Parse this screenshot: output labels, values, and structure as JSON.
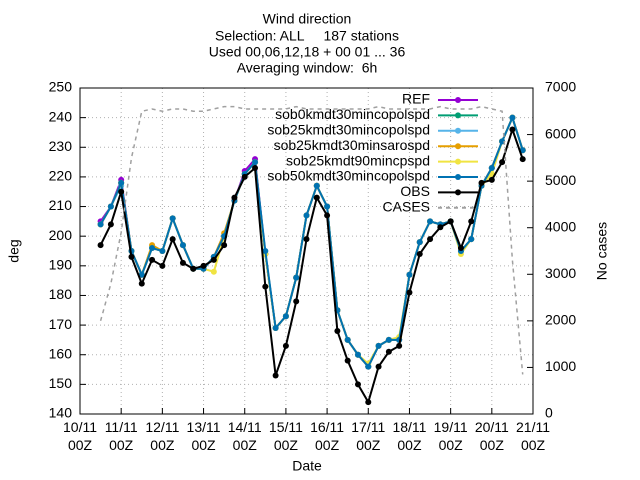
{
  "chart_data": {
    "type": "line",
    "title": [
      "Wind direction",
      "Selection: ALL     187 stations",
      "Used 00,06,12,18 + 00 01 ... 36",
      "Averaging window:  6h"
    ],
    "x_label": "Date",
    "y_label": "deg",
    "y2_label": "No cases",
    "x": [
      "10/11 12Z",
      "10/11 18Z",
      "11/11 00Z",
      "11/11 06Z",
      "11/11 12Z",
      "11/11 18Z",
      "12/11 00Z",
      "12/11 06Z",
      "12/11 12Z",
      "12/11 18Z",
      "13/11 00Z",
      "13/11 06Z",
      "13/11 12Z",
      "13/11 18Z",
      "14/11 00Z",
      "14/11 06Z",
      "14/11 12Z",
      "14/11 18Z",
      "15/11 00Z",
      "15/11 06Z",
      "15/11 12Z",
      "15/11 18Z",
      "16/11 00Z",
      "16/11 06Z",
      "16/11 12Z",
      "16/11 18Z",
      "17/11 00Z",
      "17/11 06Z",
      "17/11 12Z",
      "17/11 18Z",
      "18/11 00Z",
      "18/11 06Z",
      "18/11 12Z",
      "18/11 18Z",
      "19/11 00Z",
      "19/11 06Z",
      "19/11 12Z",
      "19/11 18Z",
      "20/11 00Z",
      "20/11 06Z",
      "20/11 12Z",
      "20/11 18Z"
    ],
    "xlim": [
      "10/11 00Z",
      "21/11 00Z"
    ],
    "xticks": [
      "10/11 00Z",
      "11/11 00Z",
      "12/11 00Z",
      "13/11 00Z",
      "14/11 00Z",
      "15/11 00Z",
      "16/11 00Z",
      "17/11 00Z",
      "18/11 00Z",
      "19/11 00Z",
      "20/11 00Z",
      "21/11 00Z"
    ],
    "ylim": [
      140,
      250
    ],
    "yticks": [
      140,
      150,
      160,
      170,
      180,
      190,
      200,
      210,
      220,
      230,
      240,
      250
    ],
    "y2lim": [
      0,
      7000
    ],
    "y2ticks": [
      0,
      1000,
      2000,
      3000,
      4000,
      5000,
      6000,
      7000
    ],
    "grid": true,
    "legend": "top right",
    "series": [
      {
        "name": "REF",
        "color": "#9400d3",
        "values": [
          205,
          210,
          219,
          195,
          187,
          196,
          195,
          206,
          197,
          189,
          189,
          193,
          200,
          212,
          222,
          226,
          194,
          169,
          173,
          186,
          207,
          217,
          210,
          175,
          165,
          160,
          156,
          163,
          165,
          165,
          187,
          198,
          205,
          204,
          205,
          195,
          199,
          217,
          223,
          232,
          240,
          229
        ]
      },
      {
        "name": "sob0kmdt30mincopolspd",
        "color": "#009e73",
        "values": [
          204,
          210,
          218,
          195,
          187,
          196,
          195,
          206,
          197,
          189,
          189,
          193,
          200,
          212,
          221,
          225,
          194,
          169,
          173,
          186,
          207,
          217,
          210,
          175,
          165,
          160,
          156,
          163,
          165,
          165,
          187,
          198,
          205,
          204,
          205,
          195,
          199,
          217,
          223,
          232,
          240,
          229
        ]
      },
      {
        "name": "sob25kmdt30mincopolspd",
        "color": "#56b4e9",
        "values": [
          204,
          210,
          217,
          195,
          187,
          196,
          195,
          206,
          197,
          189,
          189,
          193,
          200,
          212,
          221,
          225,
          194,
          169,
          173,
          186,
          207,
          217,
          210,
          175,
          165,
          160,
          156,
          163,
          165,
          165,
          187,
          198,
          205,
          204,
          205,
          195,
          199,
          217,
          223,
          232,
          240,
          229
        ]
      },
      {
        "name": "sob25kmdt30minsarospd",
        "color": "#e69f00",
        "values": [
          204,
          210,
          218,
          195,
          187,
          197,
          195,
          206,
          197,
          189,
          189,
          193,
          201,
          212,
          221,
          225,
          194,
          169,
          173,
          186,
          207,
          217,
          210,
          175,
          165,
          160,
          156,
          163,
          165,
          165,
          187,
          198,
          205,
          204,
          205,
          195,
          199,
          217,
          223,
          232,
          240,
          229
        ]
      },
      {
        "name": "sob25kmdt90mincpspd",
        "color": "#f0e442",
        "values": [
          204,
          210,
          218,
          195,
          187,
          196,
          195,
          206,
          197,
          189,
          189,
          188,
          200,
          212,
          221,
          225,
          194,
          169,
          173,
          186,
          207,
          217,
          210,
          175,
          165,
          160,
          157,
          163,
          165,
          166,
          187,
          198,
          205,
          204,
          205,
          194,
          199,
          217,
          221,
          232,
          240,
          229
        ]
      },
      {
        "name": "sob50kmdt30mincopolspd",
        "color": "#0072b2",
        "values": [
          204,
          210,
          218,
          195,
          187,
          196,
          195,
          206,
          197,
          189,
          189,
          193,
          200,
          212,
          221,
          225,
          195,
          169,
          173,
          186,
          207,
          217,
          210,
          175,
          165,
          160,
          156,
          163,
          165,
          165,
          187,
          198,
          205,
          204,
          205,
          195,
          199,
          217,
          223,
          232,
          240,
          229
        ]
      },
      {
        "name": "OBS",
        "color": "#000000",
        "values": [
          197,
          204,
          215,
          193,
          184,
          192,
          190,
          199,
          191,
          189,
          190,
          192,
          197,
          213,
          220,
          223,
          183,
          153,
          163,
          178,
          199,
          213,
          207,
          168,
          158,
          150,
          144,
          156,
          161,
          163,
          181,
          194,
          199,
          203,
          205,
          196,
          205,
          218,
          219,
          225,
          236,
          226
        ]
      },
      {
        "name": "CASES",
        "color": "#a0a0a0",
        "axis": "y2",
        "dashed": true,
        "values": [
          2000,
          2800,
          3900,
          5500,
          6500,
          6550,
          6500,
          6550,
          6550,
          6500,
          6500,
          6550,
          6600,
          6600,
          6550,
          6550,
          6550,
          6550,
          6550,
          6600,
          6550,
          6550,
          6550,
          6550,
          6550,
          6550,
          6550,
          6600,
          6550,
          6550,
          6550,
          6550,
          6550,
          6600,
          6550,
          6550,
          6550,
          6600,
          6550,
          6500,
          3300,
          850
        ]
      }
    ]
  }
}
